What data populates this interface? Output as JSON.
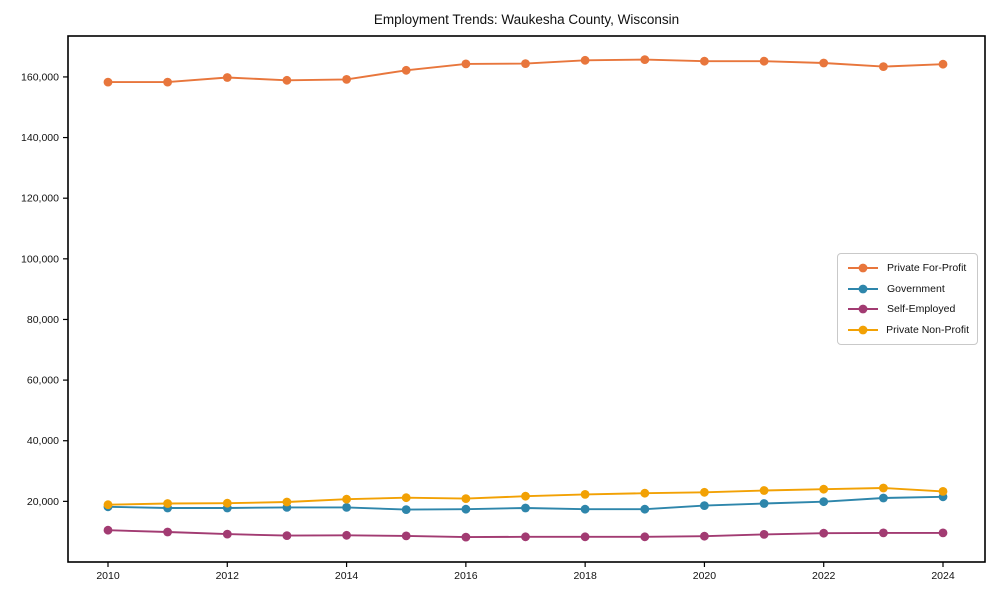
{
  "chart_data": {
    "type": "line",
    "title": "Employment Trends: Waukesha County, Wisconsin",
    "xlabel": "",
    "ylabel": "",
    "grid": false,
    "legend_position": "center-right",
    "x": [
      2010,
      2011,
      2012,
      2013,
      2014,
      2015,
      2016,
      2017,
      2018,
      2019,
      2020,
      2021,
      2022,
      2023,
      2024
    ],
    "series": [
      {
        "name": "Private For-Profit",
        "color": "#E8763C",
        "values": [
          158300,
          158300,
          159800,
          158900,
          159200,
          162200,
          164300,
          164400,
          165500,
          165700,
          165200,
          165200,
          164600,
          163400,
          164200
        ]
      },
      {
        "name": "Government",
        "color": "#2E86AB",
        "values": [
          18200,
          17800,
          17800,
          18000,
          18000,
          17300,
          17400,
          17800,
          17400,
          17400,
          18600,
          19300,
          19900,
          21100,
          21500
        ]
      },
      {
        "name": "Self-Employed",
        "color": "#A23B72",
        "values": [
          10500,
          9900,
          9200,
          8700,
          8800,
          8600,
          8200,
          8300,
          8300,
          8300,
          8500,
          9100,
          9500,
          9600,
          9600
        ]
      },
      {
        "name": "Private Non-Profit",
        "color": "#F2A104",
        "values": [
          18900,
          19300,
          19400,
          19800,
          20700,
          21200,
          20900,
          21700,
          22300,
          22700,
          23000,
          23600,
          24000,
          24400,
          23300
        ]
      }
    ],
    "x_tick_values": [
      2010,
      2012,
      2014,
      2016,
      2018,
      2020,
      2022,
      2024
    ],
    "x_tick_labels": [
      "2010",
      "2012",
      "2014",
      "2016",
      "2018",
      "2020",
      "2022",
      "2024"
    ],
    "y_tick_values": [
      20000,
      40000,
      60000,
      80000,
      100000,
      120000,
      140000,
      160000
    ],
    "y_tick_labels": [
      "20,000",
      "40,000",
      "60,000",
      "80,000",
      "100,000",
      "120,000",
      "140,000",
      "160,000"
    ],
    "xlim": [
      2009.33,
      2024.7
    ],
    "ylim": [
      0,
      173500
    ]
  }
}
